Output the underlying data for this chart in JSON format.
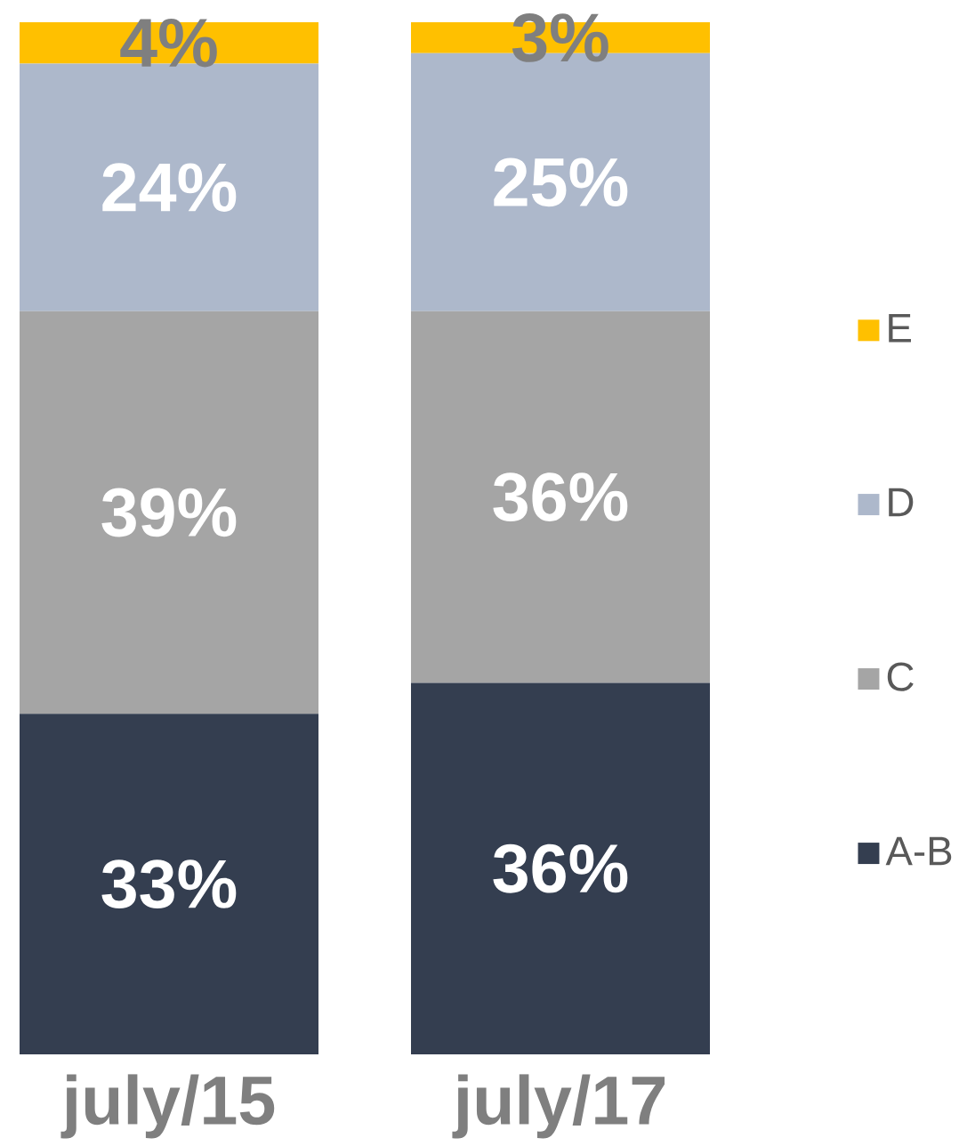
{
  "chart_data": {
    "type": "bar",
    "stacked": true,
    "categories": [
      "july/15",
      "july/17"
    ],
    "ylim": [
      0,
      100
    ],
    "legend": "right",
    "tick_labels": "x",
    "series": [
      {
        "name": "A-B",
        "color": "#343e50",
        "values": [
          33,
          36
        ],
        "value_labels": [
          "33%",
          "36%"
        ]
      },
      {
        "name": "C",
        "color": "#a5a5a5",
        "values": [
          39,
          36
        ],
        "value_labels": [
          "39%",
          "36%"
        ]
      },
      {
        "name": "D",
        "color": "#adb8cb",
        "values": [
          24,
          25
        ],
        "value_labels": [
          "24%",
          "25%"
        ]
      },
      {
        "name": "E",
        "color": "#ffc000",
        "values": [
          4,
          3
        ],
        "value_labels": [
          "4%",
          "3%"
        ]
      }
    ]
  }
}
